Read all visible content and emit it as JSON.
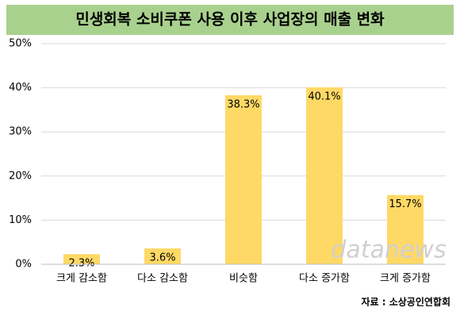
{
  "chart_data": {
    "type": "bar",
    "title": "민생회복 소비쿠폰 사용 이후 사업장의 매출 변화",
    "categories": [
      "크게 감소함",
      "다소 감소함",
      "비슷함",
      "다소 증가함",
      "크게 증가함"
    ],
    "values": [
      2.3,
      3.6,
      38.3,
      40.1,
      15.7
    ],
    "value_labels": [
      "2.3%",
      "3.6%",
      "38.3%",
      "40.1%",
      "15.7%"
    ],
    "color": "#ffd966",
    "ylim": [
      0,
      50
    ],
    "yticks": [
      {
        "value": 0,
        "label": "0%"
      },
      {
        "value": 10,
        "label": "10%"
      },
      {
        "value": 20,
        "label": "20%"
      },
      {
        "value": 30,
        "label": "30%"
      },
      {
        "value": 40,
        "label": "40%"
      },
      {
        "value": 50,
        "label": "50%"
      }
    ],
    "grid": true,
    "source": "자료 : 소상공인연합회",
    "watermark": "datanews"
  }
}
